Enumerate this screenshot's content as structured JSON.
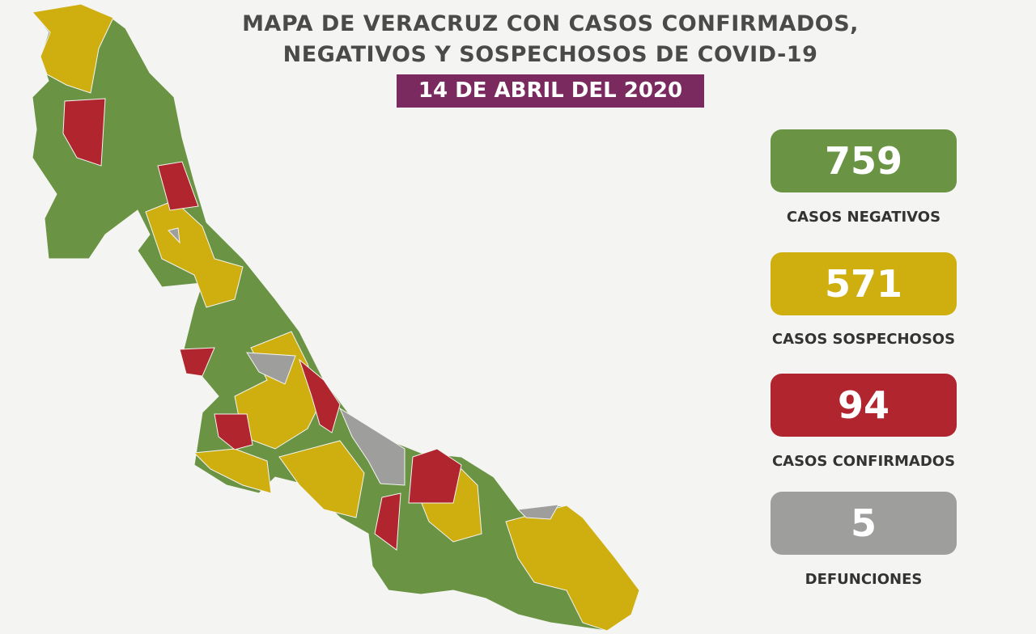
{
  "header": {
    "title_lines": [
      "MAPA DE VERACRUZ CON CASOS CONFIRMADOS,",
      "NEGATIVOS Y SOSPECHOSOS DE COVID-19"
    ],
    "date": "14 DE ABRIL DEL 2020"
  },
  "stats": [
    {
      "value": 759,
      "label": "CASOS NEGATIVOS"
    },
    {
      "value": 571,
      "label": "CASOS SOSPECHOSOS"
    },
    {
      "value": 94,
      "label": "CASOS CONFIRMADOS"
    },
    {
      "value": 5,
      "label": "DEFUNCIONES"
    }
  ]
}
